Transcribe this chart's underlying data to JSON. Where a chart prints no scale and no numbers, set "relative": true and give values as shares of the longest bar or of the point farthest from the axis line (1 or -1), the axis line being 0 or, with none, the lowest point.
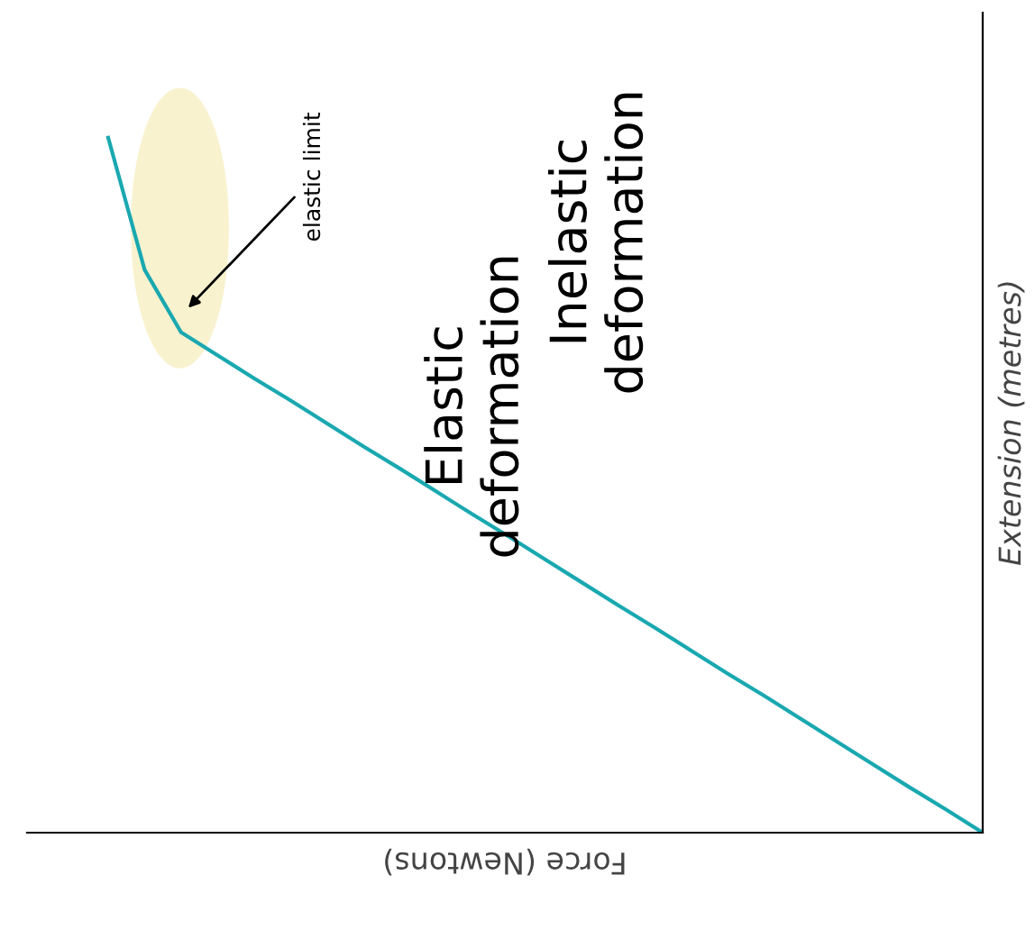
{
  "chart_data": {
    "type": "line",
    "relative": true,
    "xlabel": "Force (Newtons)",
    "ylabel": "Extension (metres)",
    "categories": [
      null,
      null,
      null,
      null,
      null,
      null,
      null,
      null,
      null,
      null,
      null,
      null,
      null,
      null,
      null,
      null,
      null,
      null,
      null,
      null,
      null,
      null,
      null,
      null,
      null
    ],
    "series": [
      {
        "color": "#1aa8b0",
        "values": [
          1.0,
          0.81,
          0.72,
          0.687,
          0.654,
          0.622,
          0.589,
          0.556,
          0.524,
          0.491,
          0.458,
          0.426,
          0.393,
          0.36,
          0.327,
          0.295,
          0.262,
          0.229,
          0.197,
          0.164,
          0.131,
          0.098,
          0.065,
          0.033,
          0
        ]
      }
    ],
    "annotations": [
      "elastic limit",
      "Inelastic deformation",
      "Elastic deformation"
    ]
  }
}
